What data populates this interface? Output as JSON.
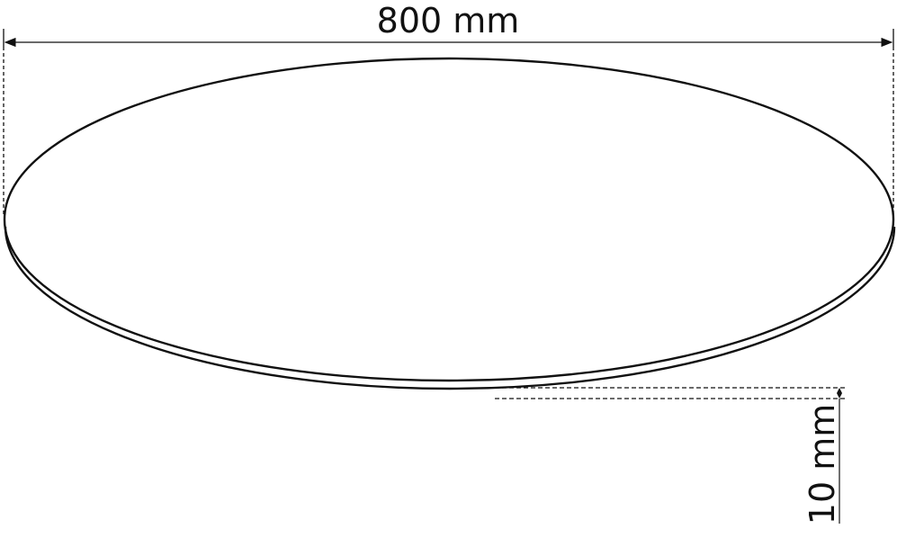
{
  "diagram": {
    "width_label": "800 mm",
    "thickness_label": "10 mm",
    "line_color": "#111111"
  }
}
